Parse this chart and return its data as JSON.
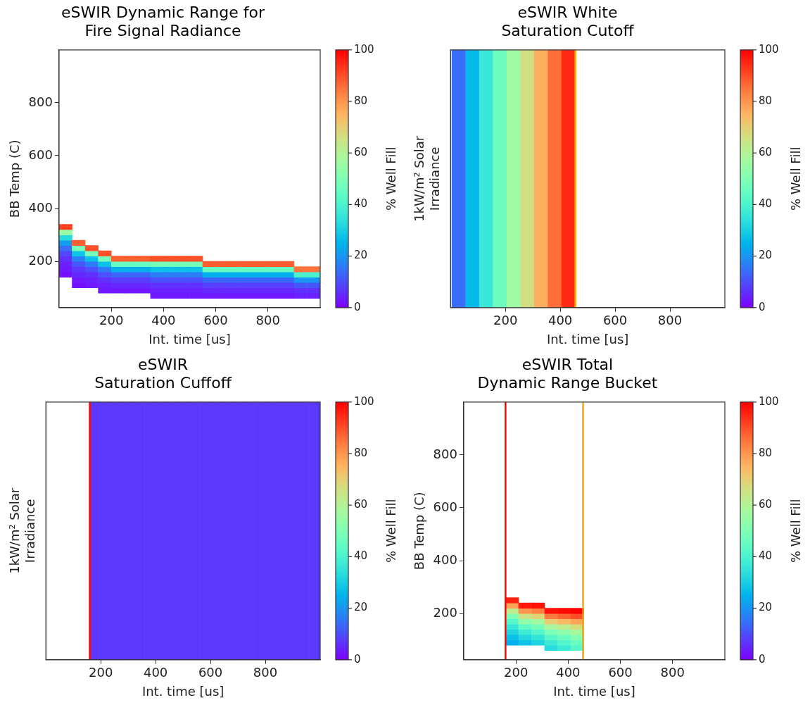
{
  "chart_data": [
    {
      "type": "scatter",
      "title": "eSWIR Dynamic Range for\nFire Signal Radiance",
      "xlabel": "Int. time [us]",
      "ylabel": "BB Temp (C)",
      "clabel": "% Well Fill",
      "marker": "square",
      "x": [
        25,
        25,
        25,
        25,
        25,
        25,
        25,
        25,
        25,
        25,
        75,
        75,
        75,
        75,
        75,
        75,
        75,
        75,
        75,
        125,
        125,
        125,
        125,
        125,
        125,
        125,
        125,
        175,
        175,
        175,
        175,
        175,
        175,
        175,
        175,
        225,
        225,
        225,
        225,
        225,
        225,
        225,
        275,
        275,
        275,
        275,
        275,
        275,
        275,
        325,
        325,
        325,
        325,
        325,
        325,
        325,
        375,
        375,
        375,
        375,
        375,
        375,
        375,
        375,
        425,
        425,
        425,
        425,
        425,
        425,
        425,
        425,
        475,
        475,
        475,
        475,
        475,
        475,
        475,
        475,
        525,
        525,
        525,
        525,
        525,
        525,
        525,
        525,
        575,
        575,
        575,
        575,
        575,
        575,
        575,
        625,
        625,
        625,
        625,
        625,
        625,
        625,
        675,
        675,
        675,
        675,
        675,
        675,
        675,
        725,
        725,
        725,
        725,
        725,
        725,
        725,
        775,
        775,
        775,
        775,
        775,
        775,
        775,
        825,
        825,
        825,
        825,
        825,
        825,
        825,
        875,
        875,
        875,
        875,
        875,
        875,
        875,
        925,
        925,
        925,
        925,
        925,
        925,
        975,
        975,
        975,
        975,
        975,
        975
      ],
      "values": [
        150,
        170,
        190,
        210,
        230,
        250,
        270,
        290,
        310,
        330,
        110,
        130,
        150,
        170,
        190,
        210,
        230,
        250,
        270,
        110,
        130,
        150,
        170,
        190,
        210,
        230,
        250,
        90,
        110,
        130,
        150,
        170,
        190,
        210,
        230,
        90,
        110,
        130,
        150,
        170,
        190,
        210,
        90,
        110,
        130,
        150,
        170,
        190,
        210,
        90,
        110,
        130,
        150,
        170,
        190,
        210,
        70,
        90,
        110,
        130,
        150,
        170,
        190,
        210,
        70,
        90,
        110,
        130,
        150,
        170,
        190,
        210,
        70,
        90,
        110,
        130,
        150,
        170,
        190,
        210,
        70,
        90,
        110,
        130,
        150,
        170,
        190,
        210,
        70,
        90,
        110,
        130,
        150,
        170,
        190,
        70,
        90,
        110,
        130,
        150,
        170,
        190,
        70,
        90,
        110,
        130,
        150,
        170,
        190,
        70,
        90,
        110,
        130,
        150,
        170,
        190,
        70,
        90,
        110,
        130,
        150,
        170,
        190,
        70,
        90,
        110,
        130,
        150,
        170,
        190,
        70,
        90,
        110,
        130,
        150,
        170,
        190,
        70,
        90,
        110,
        130,
        150,
        170,
        70,
        90,
        110,
        130,
        150,
        170
      ],
      "cvalues": [
        2,
        3,
        4,
        6,
        9,
        14,
        21,
        33,
        55,
        92,
        2,
        3,
        5,
        7,
        11,
        17,
        28,
        48,
        88,
        3,
        4,
        6,
        10,
        16,
        27,
        48,
        90,
        3,
        4,
        6,
        10,
        16,
        27,
        48,
        90,
        3,
        5,
        8,
        13,
        24,
        45,
        88,
        3,
        5,
        8,
        13,
        24,
        45,
        88,
        3,
        5,
        8,
        13,
        24,
        45,
        88,
        3,
        4,
        6,
        10,
        16,
        27,
        48,
        90,
        3,
        4,
        6,
        10,
        16,
        27,
        48,
        90,
        3,
        4,
        6,
        10,
        16,
        27,
        48,
        90,
        3,
        4,
        6,
        10,
        16,
        27,
        48,
        90,
        3,
        5,
        8,
        13,
        24,
        45,
        88,
        3,
        5,
        8,
        13,
        24,
        45,
        88,
        3,
        5,
        8,
        13,
        24,
        45,
        88,
        3,
        5,
        8,
        13,
        24,
        45,
        88,
        3,
        5,
        8,
        13,
        24,
        45,
        88,
        3,
        5,
        8,
        13,
        24,
        45,
        88,
        3,
        5,
        8,
        13,
        24,
        45,
        88,
        4,
        6,
        11,
        20,
        40,
        85,
        4,
        6,
        11,
        20,
        40,
        85
      ],
      "xlim": [
        0,
        1000
      ],
      "xticks": [
        200,
        400,
        600,
        800
      ],
      "ylim": [
        25,
        1000
      ],
      "yticks": [
        200,
        400,
        600,
        800
      ],
      "clim": [
        0,
        100
      ],
      "cticks": [
        0,
        20,
        40,
        60,
        80,
        100
      ]
    },
    {
      "type": "heatmap",
      "title": "eSWIR White\nSaturation Cutoff",
      "xlabel": "Int. time [us]",
      "ylabel": "1kW/m² Solar\nIrradiance",
      "clabel": "% Well Fill",
      "tick_labels": "x",
      "x": [
        30,
        80,
        130,
        180,
        230,
        280,
        330,
        380,
        430
      ],
      "y_categories": [
        null
      ],
      "cells": [
        [
          14,
          26,
          36,
          46,
          56,
          66,
          76,
          86,
          95
        ]
      ],
      "xlim": [
        0,
        1000
      ],
      "xticks": [
        200,
        400,
        600,
        800
      ],
      "clim": [
        0,
        100
      ],
      "cticks": [
        0,
        20,
        40,
        60,
        80,
        100
      ],
      "ref_lines": [
        {
          "axis": "x",
          "value": 455,
          "color": "#ffa500"
        }
      ]
    },
    {
      "type": "heatmap",
      "title": "eSWIR\nSaturation Cuffoff",
      "xlabel": "Int. time [us]",
      "ylabel": "1kW/m² Solar\nIrradiance",
      "clabel": "% Well Fill",
      "tick_labels": "x",
      "x": [
        180,
        220,
        260,
        300,
        340,
        380,
        420,
        460,
        500,
        540,
        580,
        620,
        660,
        700,
        740,
        780,
        820,
        860,
        900,
        940,
        980
      ],
      "y_categories": [
        null
      ],
      "cells": [
        [
          7,
          7,
          7,
          7,
          7,
          7,
          7,
          7,
          7,
          7,
          7,
          7,
          7,
          7,
          7,
          7,
          7,
          7,
          7,
          7,
          7
        ]
      ],
      "xlim": [
        0,
        1000
      ],
      "xticks": [
        200,
        400,
        600,
        800
      ],
      "clim": [
        0,
        100
      ],
      "cticks": [
        0,
        20,
        40,
        60,
        80,
        100
      ],
      "ref_lines": [
        {
          "axis": "x",
          "value": 160,
          "color": "#ff0000"
        }
      ]
    },
    {
      "type": "scatter",
      "title": "eSWIR Total\nDynamic Range Bucket",
      "xlabel": "Int. time [us]",
      "ylabel": "BB Temp (C)",
      "clabel": "% Well Fill",
      "marker": "square",
      "x": [
        185,
        185,
        185,
        185,
        185,
        185,
        185,
        185,
        185,
        235,
        235,
        235,
        235,
        235,
        235,
        235,
        235,
        285,
        285,
        285,
        285,
        285,
        285,
        285,
        285,
        335,
        335,
        335,
        335,
        335,
        335,
        335,
        335,
        385,
        385,
        385,
        385,
        385,
        385,
        385,
        385,
        435,
        435,
        435,
        435,
        435,
        435,
        435,
        435
      ],
      "values": [
        90,
        110,
        130,
        150,
        170,
        190,
        210,
        230,
        250,
        90,
        110,
        130,
        150,
        170,
        190,
        210,
        230,
        90,
        110,
        130,
        150,
        170,
        190,
        210,
        230,
        70,
        90,
        110,
        130,
        150,
        170,
        190,
        210,
        70,
        90,
        110,
        130,
        150,
        170,
        190,
        210,
        70,
        90,
        110,
        130,
        150,
        170,
        190,
        210
      ],
      "cvalues": [
        24,
        27,
        31,
        36,
        42,
        50,
        62,
        78,
        96,
        28,
        32,
        37,
        44,
        53,
        65,
        80,
        97,
        31,
        35,
        41,
        48,
        57,
        69,
        83,
        98,
        33,
        37,
        42,
        49,
        58,
        70,
        84,
        98,
        37,
        41,
        46,
        53,
        62,
        74,
        87,
        99,
        42,
        46,
        51,
        58,
        67,
        78,
        90,
        100
      ],
      "xlim": [
        0,
        1000
      ],
      "xticks": [
        200,
        400,
        600,
        800
      ],
      "ylim": [
        25,
        1000
      ],
      "yticks": [
        200,
        400,
        600,
        800
      ],
      "clim": [
        0,
        100
      ],
      "cticks": [
        0,
        20,
        40,
        60,
        80,
        100
      ],
      "ref_lines": [
        {
          "axis": "x",
          "value": 160,
          "color": "#ff0000"
        },
        {
          "axis": "x",
          "value": 457,
          "color": "#ffa500"
        }
      ]
    }
  ]
}
